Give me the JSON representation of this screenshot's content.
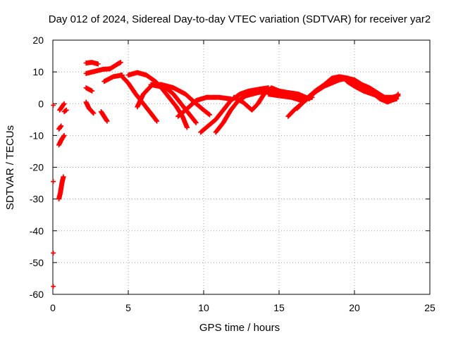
{
  "chart_data": {
    "type": "scatter",
    "title": "Day 012 of 2024, Sidereal Day-to-day VTEC variation (SDTVAR) for receiver yar2",
    "xlabel": "GPS time / hours",
    "ylabel": "SDTVAR / TECUs",
    "xlim": [
      0,
      25
    ],
    "ylim": [
      -60,
      20
    ],
    "x_ticks": [
      "0",
      "5",
      "10",
      "15",
      "20",
      "25"
    ],
    "y_ticks": [
      "20",
      "10",
      "0",
      "-10",
      "-20",
      "-30",
      "-40",
      "-50",
      "-60"
    ],
    "grid": true,
    "series_color": "#ff0000",
    "marker": "+",
    "series": [
      {
        "name": "isolated",
        "points": [
          [
            0.03,
            -0.5
          ],
          [
            0.03,
            -24.5
          ],
          [
            0.03,
            -47
          ],
          [
            0.03,
            -57.5
          ]
        ]
      },
      {
        "name": "arc-a",
        "points": [
          [
            0.4,
            -30
          ],
          [
            0.5,
            -28
          ],
          [
            0.6,
            -25
          ],
          [
            0.7,
            -23
          ]
        ]
      },
      {
        "name": "arc-b",
        "points": [
          [
            0.4,
            -13
          ],
          [
            0.55,
            -11.5
          ],
          [
            0.75,
            -10
          ]
        ]
      },
      {
        "name": "arc-c",
        "points": [
          [
            0.4,
            -8
          ],
          [
            0.55,
            -7
          ]
        ]
      },
      {
        "name": "arc-d",
        "points": [
          [
            0.45,
            -2
          ],
          [
            0.6,
            -1
          ],
          [
            0.75,
            0
          ]
        ]
      },
      {
        "name": "arc-e",
        "points": [
          [
            0.75,
            -2.5
          ],
          [
            0.9,
            -2
          ]
        ]
      },
      {
        "name": "arc-f",
        "points": [
          [
            2.2,
            12.8
          ],
          [
            2.6,
            13
          ],
          [
            3.0,
            12.5
          ]
        ]
      },
      {
        "name": "arc-g",
        "points": [
          [
            2.2,
            9.5
          ],
          [
            2.8,
            10.2
          ],
          [
            3.3,
            10.8
          ],
          [
            3.8,
            11
          ],
          [
            4.3,
            12.5
          ],
          [
            4.5,
            13
          ]
        ]
      },
      {
        "name": "arc-h",
        "points": [
          [
            2.2,
            5
          ],
          [
            2.6,
            4
          ]
        ]
      },
      {
        "name": "arc-i",
        "points": [
          [
            2.2,
            0.5
          ],
          [
            2.4,
            -1.5
          ],
          [
            2.7,
            -3
          ]
        ]
      },
      {
        "name": "arc-j",
        "points": [
          [
            3.2,
            -2.5
          ],
          [
            3.4,
            -4
          ],
          [
            3.6,
            -5.5
          ]
        ]
      },
      {
        "name": "arc-k",
        "points": [
          [
            3.4,
            7
          ],
          [
            4.0,
            8.5
          ],
          [
            4.6,
            9
          ]
        ]
      },
      {
        "name": "arc-l",
        "points": [
          [
            4.5,
            9
          ],
          [
            5.0,
            6.5
          ],
          [
            5.5,
            3
          ],
          [
            6.0,
            0
          ],
          [
            6.5,
            -3
          ],
          [
            6.9,
            -5.5
          ]
        ]
      },
      {
        "name": "arc-m",
        "points": [
          [
            5.0,
            9
          ],
          [
            5.6,
            9.8
          ],
          [
            6.2,
            9
          ],
          [
            6.8,
            7
          ],
          [
            7.2,
            5
          ],
          [
            7.7,
            2
          ],
          [
            8.2,
            -1
          ],
          [
            8.6,
            -4
          ],
          [
            8.9,
            -7.5
          ]
        ]
      },
      {
        "name": "arc-n",
        "points": [
          [
            5.6,
            -1
          ],
          [
            6.0,
            3
          ],
          [
            6.6,
            6
          ],
          [
            7.2,
            6
          ],
          [
            8.0,
            5
          ],
          [
            8.8,
            3
          ],
          [
            9.5,
            0
          ],
          [
            10.0,
            -2
          ],
          [
            10.4,
            -3.5
          ]
        ]
      },
      {
        "name": "arc-o",
        "points": [
          [
            6.5,
            6
          ],
          [
            7.5,
            5
          ],
          [
            8.0,
            3
          ],
          [
            8.5,
            0
          ],
          [
            9.0,
            -3
          ],
          [
            9.5,
            -6
          ]
        ]
      },
      {
        "name": "arc-p",
        "points": [
          [
            8.3,
            -4
          ],
          [
            8.8,
            -2
          ],
          [
            9.5,
            1
          ],
          [
            10.2,
            2
          ],
          [
            11.0,
            2
          ],
          [
            11.8,
            1.5
          ]
        ]
      },
      {
        "name": "arc-q",
        "points": [
          [
            9.8,
            -9
          ],
          [
            10.3,
            -7
          ],
          [
            10.8,
            -5
          ],
          [
            11.3,
            -2
          ],
          [
            11.8,
            1
          ],
          [
            12.4,
            3
          ],
          [
            13.0,
            4
          ],
          [
            13.6,
            4.5
          ],
          [
            14.3,
            5
          ]
        ]
      },
      {
        "name": "arc-r",
        "points": [
          [
            10.8,
            -9
          ],
          [
            11.3,
            -6
          ],
          [
            11.8,
            -2
          ],
          [
            12.3,
            1
          ],
          [
            12.8,
            2.5
          ],
          [
            13.6,
            3.5
          ],
          [
            14.4,
            4
          ],
          [
            15.2,
            3.5
          ],
          [
            16.0,
            2.5
          ],
          [
            16.8,
            2
          ]
        ]
      },
      {
        "name": "arc-s",
        "points": [
          [
            12.0,
            2
          ],
          [
            12.6,
            0.5
          ],
          [
            13.2,
            -2
          ],
          [
            13.6,
            0
          ],
          [
            14.0,
            3
          ],
          [
            14.5,
            5
          ],
          [
            15.0,
            4
          ],
          [
            15.6,
            3.5
          ],
          [
            16.3,
            3
          ],
          [
            17.0,
            1.5
          ]
        ]
      },
      {
        "name": "arc-t",
        "points": [
          [
            14.3,
            3
          ],
          [
            15.0,
            2.5
          ],
          [
            15.8,
            2
          ],
          [
            16.5,
            1
          ],
          [
            17.2,
            2
          ]
        ]
      },
      {
        "name": "arc-u",
        "points": [
          [
            15.6,
            -4
          ],
          [
            16.0,
            -2
          ],
          [
            16.5,
            0
          ],
          [
            17.0,
            2
          ],
          [
            17.5,
            4
          ],
          [
            18.0,
            5.5
          ],
          [
            18.5,
            6.5
          ],
          [
            19.0,
            7.5
          ],
          [
            19.5,
            8
          ],
          [
            20.0,
            7.5
          ],
          [
            20.5,
            6
          ],
          [
            21.0,
            5
          ],
          [
            21.5,
            3.5
          ],
          [
            22.0,
            2
          ],
          [
            22.5,
            2
          ],
          [
            22.9,
            2.5
          ]
        ]
      },
      {
        "name": "arc-v",
        "points": [
          [
            16.2,
            -1.5
          ],
          [
            16.8,
            1.5
          ],
          [
            17.4,
            4
          ],
          [
            18.0,
            6
          ],
          [
            18.5,
            8
          ],
          [
            19.0,
            8.5
          ],
          [
            19.6,
            8
          ],
          [
            20.2,
            6.5
          ],
          [
            20.8,
            5
          ],
          [
            21.3,
            3
          ],
          [
            21.7,
            1.5
          ],
          [
            22.2,
            0.5
          ],
          [
            22.7,
            1.5
          ],
          [
            22.9,
            3
          ]
        ]
      },
      {
        "name": "arc-w",
        "points": [
          [
            19.5,
            7
          ],
          [
            20.0,
            5.5
          ],
          [
            20.6,
            4
          ],
          [
            21.2,
            3
          ],
          [
            21.8,
            2
          ],
          [
            22.3,
            1
          ],
          [
            22.8,
            1.5
          ]
        ]
      }
    ]
  }
}
